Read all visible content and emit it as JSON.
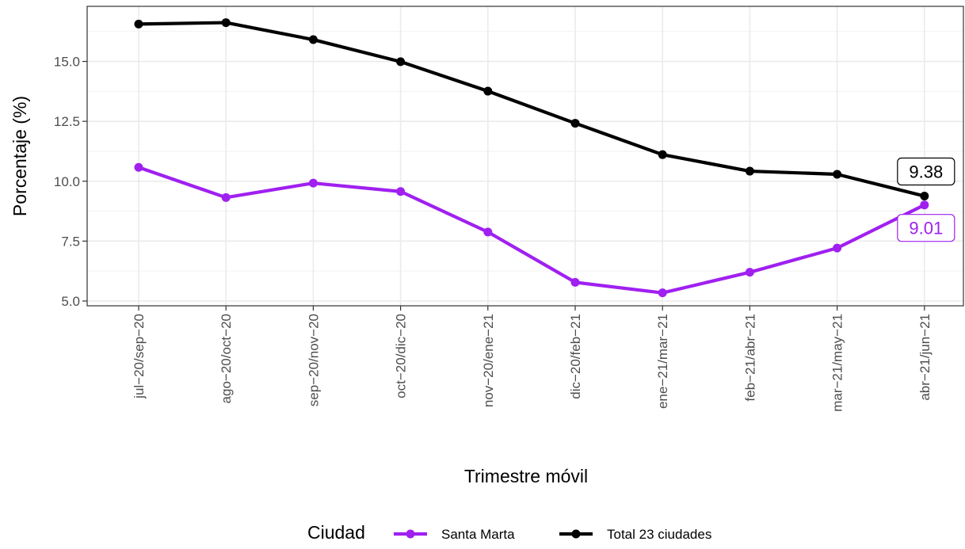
{
  "chart_data": {
    "type": "line",
    "xlabel": "Trimestre móvil",
    "ylabel": "Porcentaje (%)",
    "ylim": [
      4.8,
      17.3
    ],
    "yticks": [
      5.0,
      7.5,
      10.0,
      12.5,
      15.0
    ],
    "ytick_labels": [
      "5.0",
      "7.5",
      "10.0",
      "12.5",
      "15.0"
    ],
    "grid": true,
    "categories": [
      "jul−20/sep−20",
      "ago−20/oct−20",
      "sep−20/nov−20",
      "oct−20/dic−20",
      "nov−20/ene−21",
      "dic−20/feb−21",
      "ene−21/mar−21",
      "feb−21/abr−21",
      "mar−21/may−21",
      "abr−21/jun−21"
    ],
    "series": [
      {
        "name": "Santa Marta",
        "color": "#a020f0",
        "values": [
          10.58,
          9.32,
          9.92,
          9.57,
          7.88,
          5.78,
          5.34,
          6.2,
          7.21,
          9.01
        ],
        "end_label": "9.01"
      },
      {
        "name": "Total 23 ciudades",
        "color": "#000000",
        "values": [
          16.56,
          16.62,
          15.91,
          14.99,
          13.76,
          12.42,
          11.11,
          10.42,
          10.29,
          9.38
        ],
        "end_label": "9.38"
      }
    ],
    "legend": {
      "title": "Ciudad",
      "position": "bottom"
    }
  }
}
